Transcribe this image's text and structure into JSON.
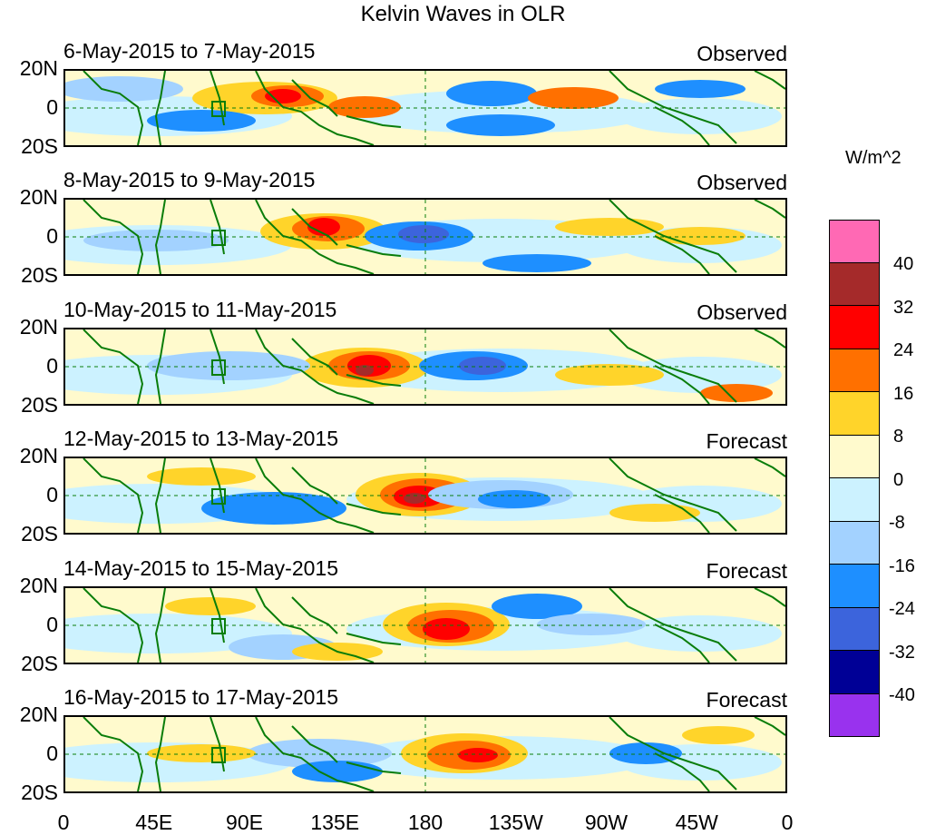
{
  "title": "Kelvin Waves in OLR",
  "panels": [
    {
      "dates": "6-May-2015 to 7-May-2015",
      "kind": "Observed"
    },
    {
      "dates": "8-May-2015 to 9-May-2015",
      "kind": "Observed"
    },
    {
      "dates": "10-May-2015 to 11-May-2015",
      "kind": "Observed"
    },
    {
      "dates": "12-May-2015 to 13-May-2015",
      "kind": "Forecast"
    },
    {
      "dates": "14-May-2015 to 15-May-2015",
      "kind": "Forecast"
    },
    {
      "dates": "16-May-2015 to 17-May-2015",
      "kind": "Forecast"
    }
  ],
  "lat_labels": [
    "20N",
    "0",
    "20S"
  ],
  "lon_labels": [
    "0",
    "45E",
    "90E",
    "135E",
    "180",
    "135W",
    "90W",
    "45W",
    "0"
  ],
  "colorbar": {
    "units": "W/m^2",
    "labels": [
      "40",
      "32",
      "24",
      "16",
      "8",
      "0",
      "-8",
      "-16",
      "-24",
      "-32",
      "-40"
    ],
    "colors": [
      "#ff69b4",
      "#a52a2a",
      "#ff0000",
      "#ff7000",
      "#ffd42a",
      "#fffacd",
      "#ccf2ff",
      "#a3d2ff",
      "#1e8fff",
      "#3c64dc",
      "#000096",
      "#9932ee"
    ]
  },
  "colors": {
    "land": "#0a7d0a",
    "background": "#fffacd"
  }
}
